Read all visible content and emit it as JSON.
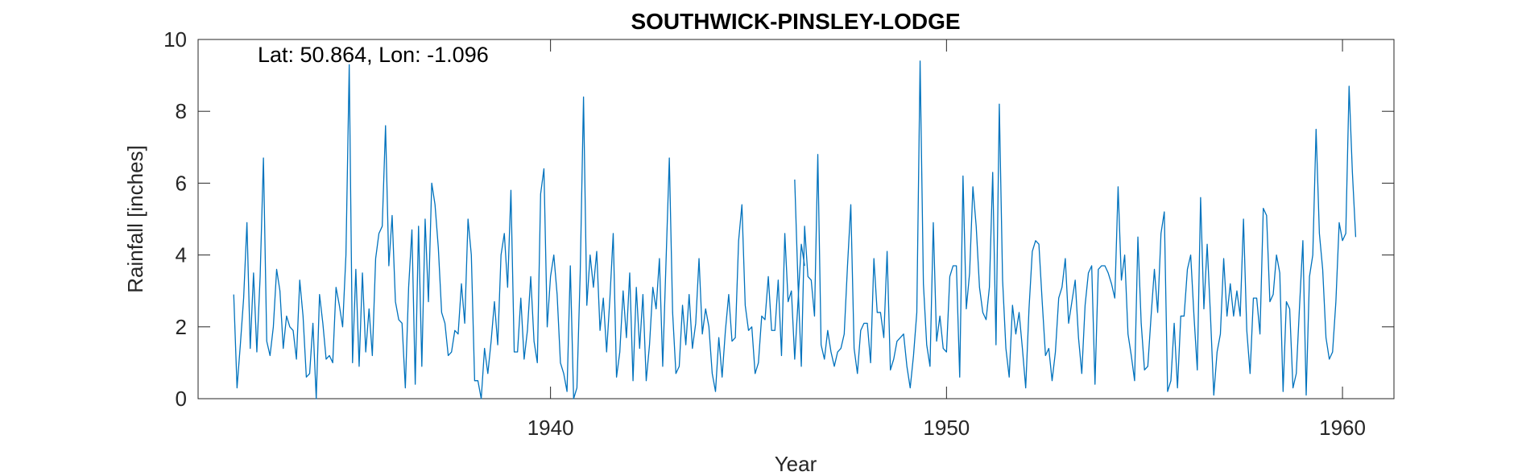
{
  "chart_data": {
    "type": "line",
    "title": "SOUTHWICK-PINSLEY-LODGE",
    "annotation": "Lat: 50.864, Lon: -1.096",
    "xlabel": "Year",
    "ylabel": "Rainfall [inches]",
    "xlim": [
      1931.1,
      1961.3
    ],
    "ylim": [
      0,
      10
    ],
    "xticks": [
      1940,
      1950,
      1960
    ],
    "xtick_labels": [
      "1940",
      "1950",
      "1960"
    ],
    "yticks": [
      0,
      2,
      4,
      6,
      8,
      10
    ],
    "ytick_labels": [
      "0",
      "2",
      "4",
      "6",
      "8",
      "10"
    ],
    "grid": false,
    "box": true,
    "series": [
      {
        "color": "#0072BD",
        "segments": [
          {
            "x_start": "1932-01",
            "values": [
              2.9,
              0.3,
              1.5,
              2.8,
              4.9,
              1.4,
              3.5,
              1.3,
              3.4,
              6.7,
              1.6,
              1.2,
              2.0,
              3.6,
              3.0,
              1.4,
              2.3,
              2.0,
              1.9,
              1.1,
              3.3,
              2.3,
              0.6,
              0.7,
              2.1,
              0.0,
              2.9,
              2.1,
              1.1,
              1.2,
              1.0,
              3.1,
              2.6,
              2.0,
              4.0,
              9.3,
              1.0,
              3.6,
              0.9,
              3.5,
              1.3,
              2.5,
              1.2,
              3.9,
              4.6,
              4.8,
              7.6,
              3.7,
              5.1,
              2.7,
              2.2,
              2.1,
              0.3,
              3.1,
              4.7,
              0.4,
              4.8,
              0.9,
              5.0,
              2.7,
              6.0,
              5.4,
              4.2,
              2.4,
              2.1,
              1.2,
              1.3,
              1.9,
              1.8,
              3.2,
              2.1,
              5.0,
              4.0,
              0.5,
              0.5,
              0.0,
              1.4,
              0.7,
              1.6,
              2.7,
              1.5,
              4.0,
              4.6,
              3.1,
              5.8,
              1.3,
              1.3,
              2.8,
              1.1,
              1.9,
              3.4,
              1.6,
              1.0,
              5.7,
              6.4,
              2.0,
              3.4,
              4.0,
              2.9,
              1.0,
              0.7,
              0.2,
              3.7,
              0.0,
              0.3,
              3.5,
              8.4,
              2.6,
              4.0,
              3.1,
              4.1,
              1.9,
              2.8,
              1.3,
              2.8,
              4.6,
              0.6,
              1.3,
              3.0,
              1.7,
              3.5,
              0.5,
              3.1,
              1.4,
              2.9,
              0.5,
              1.5,
              3.1,
              2.5,
              3.9,
              0.9,
              3.8,
              6.7,
              2.4,
              0.7,
              0.9,
              2.6,
              1.5,
              2.9,
              1.4,
              2.1,
              3.9,
              1.8,
              2.5,
              2.0,
              0.7,
              0.2,
              1.7,
              0.6,
              1.9,
              2.9,
              1.6,
              1.7,
              4.4,
              5.4,
              2.6,
              1.9,
              2.0,
              0.7,
              1.0,
              2.3,
              2.2,
              3.4,
              1.9,
              1.9,
              3.3,
              1.2,
              4.6,
              2.7,
              3.0,
              1.1,
              2.7,
              4.3,
              3.7
            ]
          },
          {
            "x_start": "1946-03",
            "values": [
              6.1,
              3.2,
              0.9,
              4.8,
              3.4,
              3.3,
              2.3,
              6.8,
              1.5,
              1.1,
              1.9,
              1.3,
              0.9,
              1.3,
              1.4,
              1.8,
              3.7,
              5.4,
              1.4,
              0.7,
              1.9,
              2.1,
              2.1,
              1.0,
              3.9,
              2.4,
              2.4,
              1.7,
              4.1,
              0.8,
              1.1,
              1.6,
              1.7,
              1.8,
              0.9,
              0.3,
              1.2,
              2.4,
              9.4,
              3.2,
              1.5,
              0.9,
              4.9,
              1.6,
              2.3,
              1.4,
              1.3,
              3.4,
              3.7,
              3.7,
              0.6,
              6.2,
              2.5,
              3.5,
              5.9,
              4.8,
              3.1,
              2.4,
              2.2,
              3.1,
              6.3,
              1.5,
              8.2,
              3.3,
              1.4,
              0.6,
              2.6,
              1.8,
              2.4,
              1.4,
              0.3,
              2.5,
              4.1,
              4.4,
              4.3,
              2.7,
              1.2,
              1.4,
              0.5,
              1.3,
              2.8,
              3.1,
              3.9,
              2.1,
              2.7,
              3.3,
              1.7,
              0.7,
              2.6,
              3.5,
              3.7,
              0.4,
              3.6,
              3.7,
              3.7,
              3.5,
              3.2,
              2.8,
              5.9,
              3.3,
              4.0,
              1.8,
              1.2,
              0.5,
              4.5,
              2.1,
              0.8,
              0.9,
              2.3,
              3.6,
              2.4,
              4.6,
              5.2,
              0.2,
              0.5,
              2.1,
              0.3,
              2.3,
              2.3,
              3.6,
              4.0,
              2.3,
              0.8,
              5.6,
              2.5,
              4.3,
              2.3,
              0.1,
              1.3,
              1.8,
              3.9,
              2.3,
              3.2,
              2.3,
              3.0,
              2.3,
              5.0,
              1.9,
              0.7,
              2.8,
              2.8,
              1.8,
              5.3,
              5.1,
              2.7,
              2.9,
              4.0,
              3.5,
              0.2,
              2.7,
              2.5,
              0.3,
              0.7,
              2.6,
              4.4,
              0.1,
              3.4,
              4.0,
              7.5,
              4.6,
              3.6,
              1.7,
              1.1,
              1.3,
              2.7,
              4.9,
              4.4,
              4.6,
              8.7,
              6.3,
              4.5
            ]
          }
        ]
      }
    ]
  }
}
